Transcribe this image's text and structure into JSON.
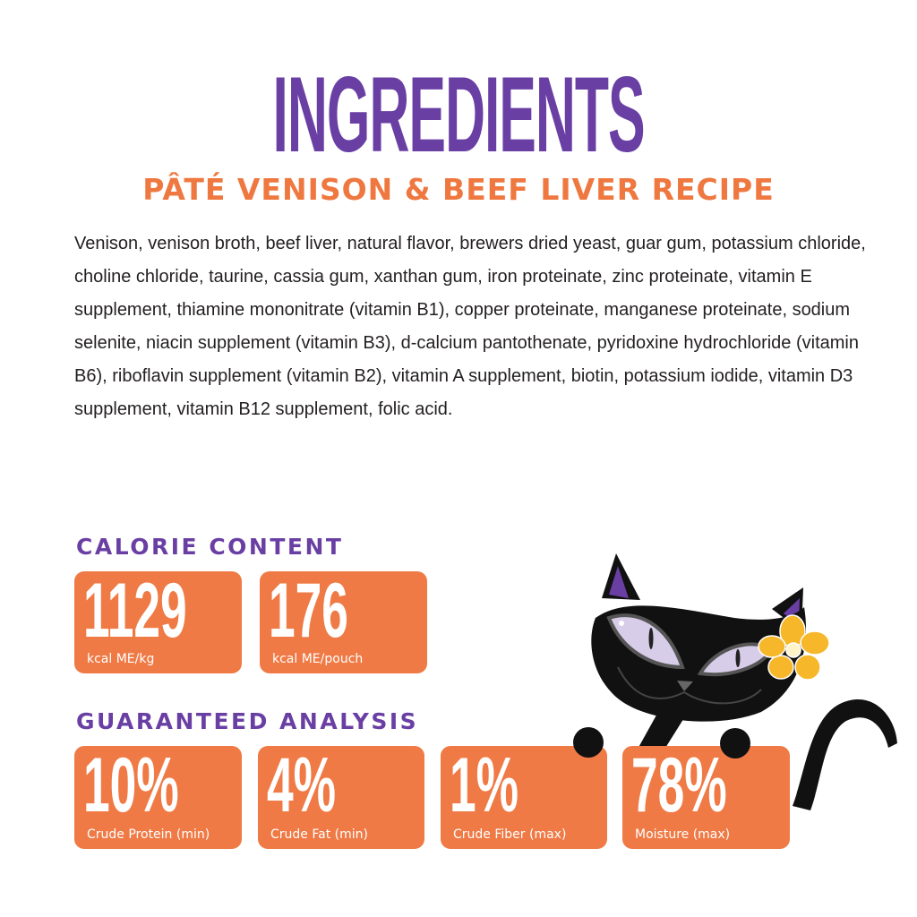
{
  "title": "INGREDIENTS",
  "subtitle": "PÂTÉ VENISON & BEEF LIVER RECIPE",
  "ingredients": "Venison, venison broth, beef liver, natural flavor, brewers dried yeast, guar gum, potassium chloride, choline chloride, taurine, cassia gum, xanthan gum, iron proteinate, zinc proteinate, vitamin E supplement, thiamine mononitrate (vitamin B1), copper proteinate, manganese proteinate, sodium selenite, niacin supplement (vitamin B3), d-calcium pantothenate, pyridoxine hydrochloride (vitamin B6), riboflavin supplement (vitamin B2), vitamin A supplement, biotin, potassium iodide, vitamin D3 supplement, vitamin B12 supplement, folic acid.",
  "calorie": {
    "heading": "CALORIE CONTENT",
    "items": [
      {
        "value": "1129",
        "label": "kcal ME/kg"
      },
      {
        "value": "176",
        "label": "kcal ME/pouch"
      }
    ]
  },
  "analysis": {
    "heading": "GUARANTEED ANALYSIS",
    "items": [
      {
        "value": "10%",
        "label": "Crude Protein (min)"
      },
      {
        "value": "4%",
        "label": "Crude Fat (min)"
      },
      {
        "value": "1%",
        "label": "Crude Fiber (max)"
      },
      {
        "value": "78%",
        "label": "Moisture (max)"
      }
    ]
  },
  "colors": {
    "purple": "#6a3fa4",
    "orange": "#ef7a45",
    "text": "#231f20"
  },
  "illustration": "black-cat-with-yellow-flower"
}
